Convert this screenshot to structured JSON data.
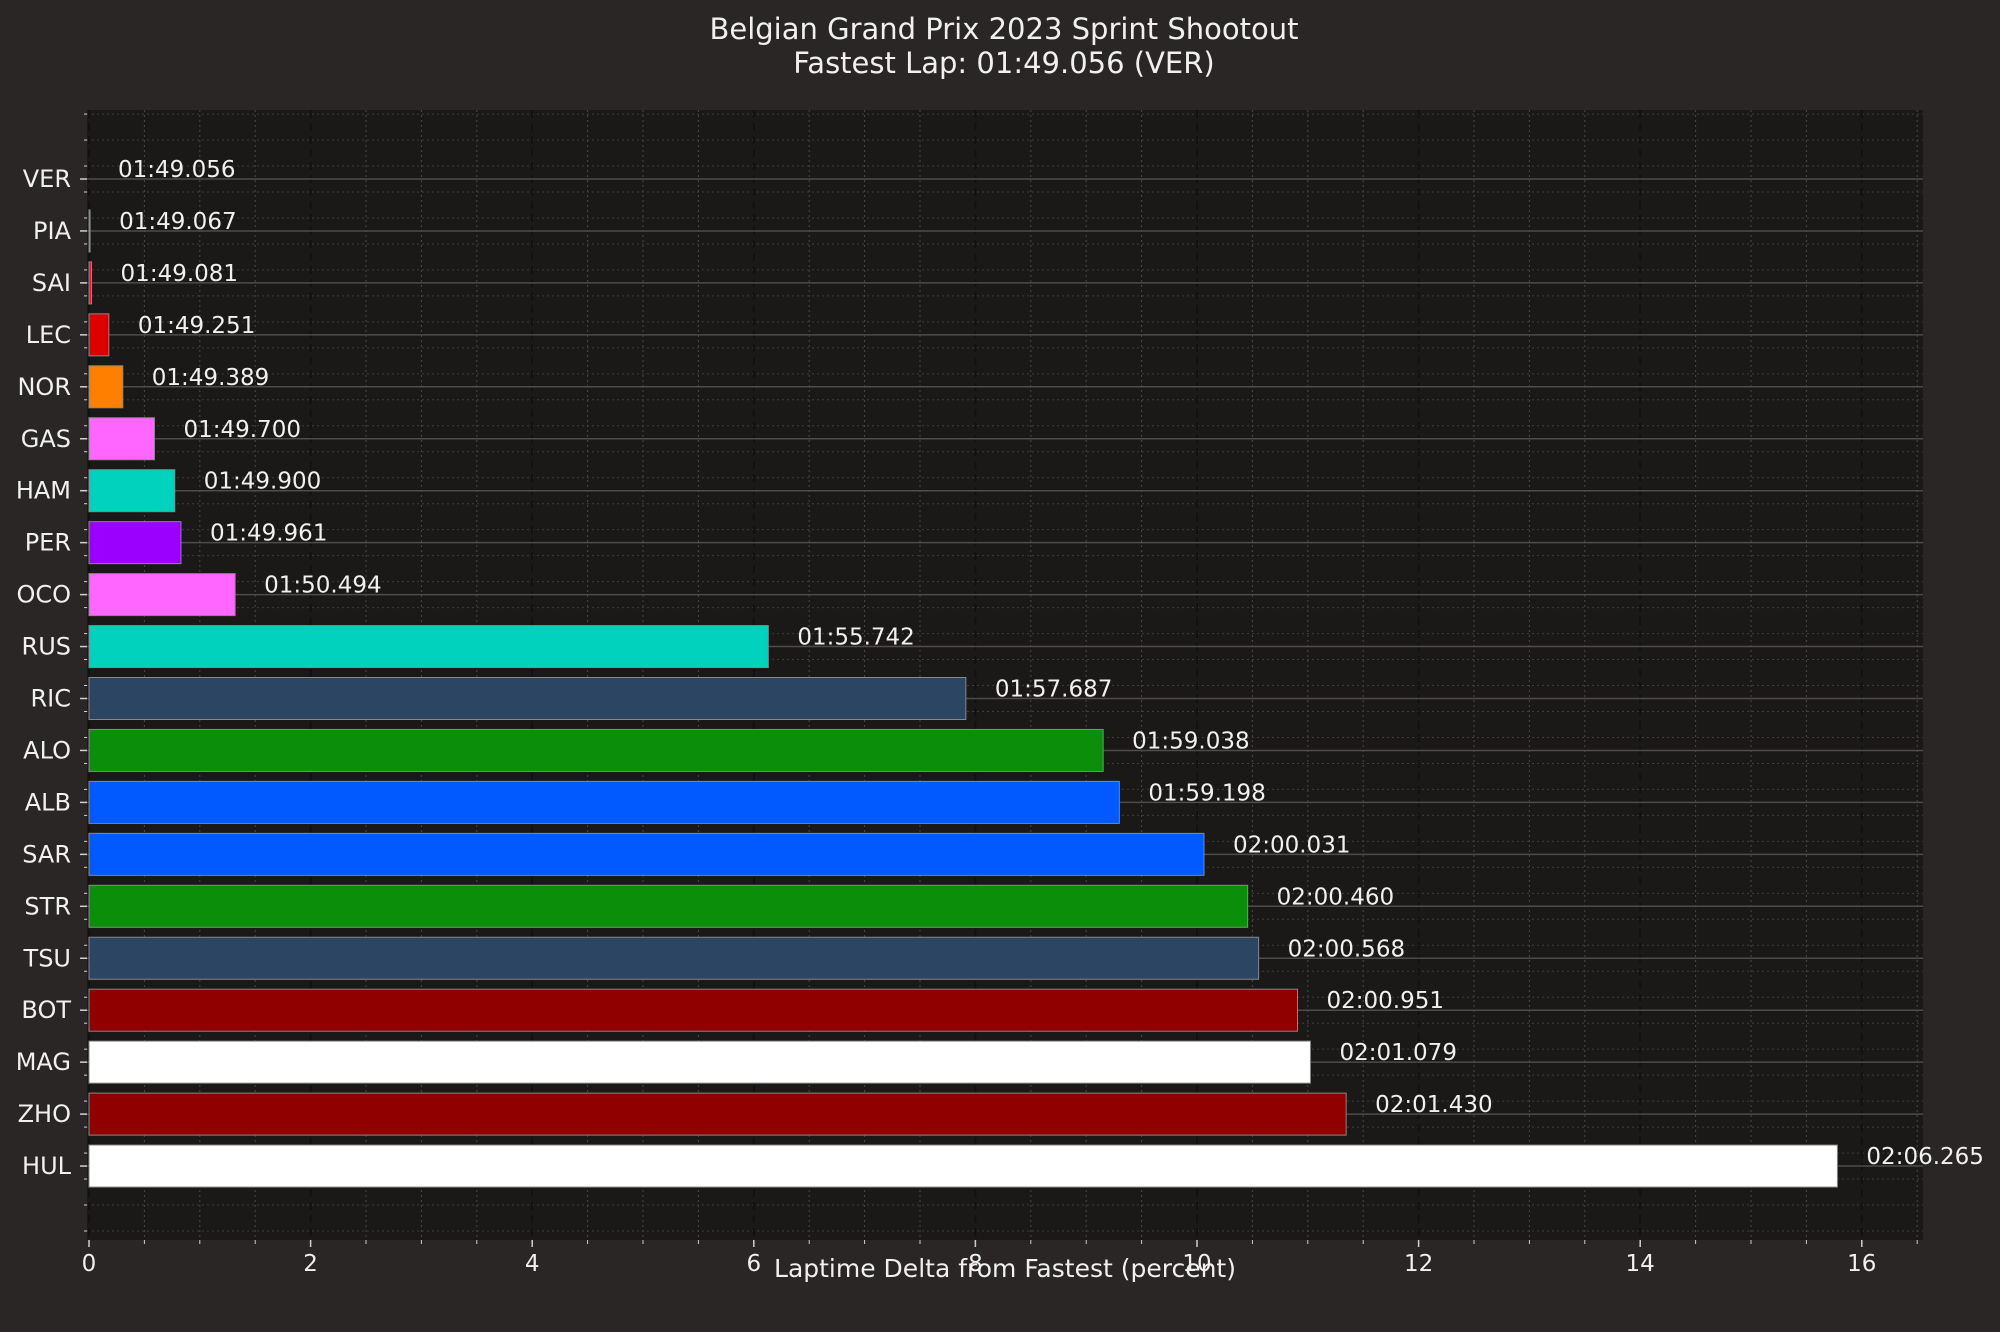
{
  "chart_data": {
    "type": "bar",
    "orientation": "horizontal",
    "title": "Belgian Grand Prix 2023 Sprint Shootout",
    "subtitle": "Fastest Lap: 01:49.056 (VER)",
    "xlabel": "Laptime Delta from Fastest (percent)",
    "ylabel": "",
    "xlim": [
      0,
      16.6
    ],
    "xticks": [
      0,
      2,
      4,
      6,
      8,
      10,
      12,
      14,
      16
    ],
    "grid": true,
    "background": "#292625",
    "categories": [
      "VER",
      "PIA",
      "SAI",
      "LEC",
      "NOR",
      "GAS",
      "HAM",
      "PER",
      "OCO",
      "RUS",
      "RIC",
      "ALO",
      "ALB",
      "SAR",
      "STR",
      "TSU",
      "BOT",
      "MAG",
      "ZHO",
      "HUL"
    ],
    "values": [
      0,
      0.01,
      0.023,
      0.179,
      0.305,
      0.591,
      0.774,
      0.83,
      1.319,
      6.131,
      7.914,
      9.153,
      9.299,
      10.063,
      10.457,
      10.556,
      10.907,
      11.024,
      11.346,
      15.78
    ],
    "labels": [
      "01:49.056",
      "01:49.067",
      "01:49.081",
      "01:49.251",
      "01:49.389",
      "01:49.700",
      "01:49.900",
      "01:49.961",
      "01:50.494",
      "01:55.742",
      "01:57.687",
      "01:59.038",
      "01:59.198",
      "02:00.031",
      "02:00.460",
      "02:00.568",
      "02:00.951",
      "02:01.079",
      "02:01.430",
      "02:06.265"
    ],
    "colors": [
      "#3671c6",
      "#ff8700",
      "#f91536",
      "#dc0000",
      "#ff8000",
      "#ff66ff",
      "#00d2be",
      "#9b00ff",
      "#ff66ff",
      "#00d2be",
      "#2b4562",
      "#0b8f0b",
      "#005aff",
      "#005aff",
      "#0b8f0b",
      "#2b4562",
      "#900000",
      "#ffffff",
      "#900000",
      "#ffffff"
    ]
  }
}
